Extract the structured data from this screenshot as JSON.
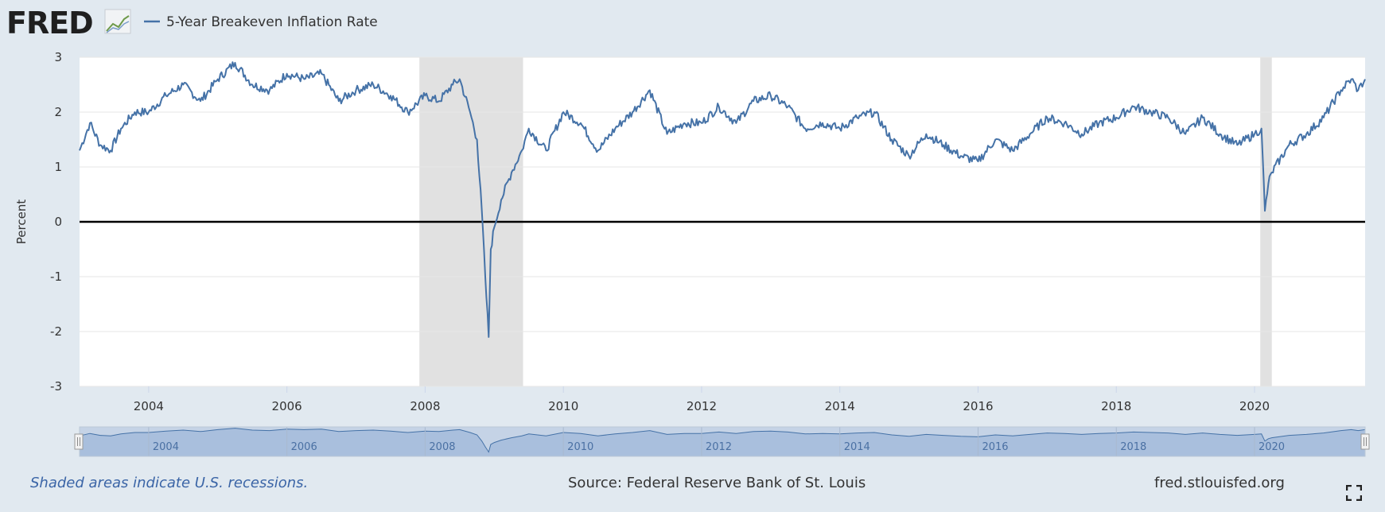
{
  "header": {
    "logo_text": "FRED",
    "series_title": "5-Year Breakeven Inflation Rate"
  },
  "colors": {
    "series": "#4572a7",
    "recession": "#e1e1e1",
    "background": "#e1e9f0",
    "zero_line": "#000000",
    "navigator_fill": "#a9bfdd"
  },
  "chart_data": {
    "type": "line",
    "title": "5-Year Breakeven Inflation Rate",
    "xlabel": "",
    "ylabel": "Percent",
    "xlim": [
      2003.0,
      2021.6
    ],
    "ylim": [
      -3,
      3
    ],
    "y_ticks": [
      "3",
      "2",
      "1",
      "0",
      "-1",
      "-2",
      "-3"
    ],
    "x_ticks": [
      "2004",
      "2006",
      "2008",
      "2010",
      "2012",
      "2014",
      "2016",
      "2018",
      "2020"
    ],
    "recessions": [
      [
        2007.917,
        2009.417
      ],
      [
        2020.083,
        2020.25
      ]
    ],
    "series": [
      {
        "name": "5-Year Breakeven Inflation Rate",
        "x": [
          2003.0,
          2003.15,
          2003.3,
          2003.45,
          2003.6,
          2003.8,
          2004.0,
          2004.25,
          2004.5,
          2004.75,
          2005.0,
          2005.25,
          2005.5,
          2005.75,
          2006.0,
          2006.25,
          2006.5,
          2006.75,
          2007.0,
          2007.25,
          2007.5,
          2007.75,
          2008.0,
          2008.2,
          2008.4,
          2008.5,
          2008.65,
          2008.75,
          2008.82,
          2008.87,
          2008.92,
          2008.95,
          2009.0,
          2009.1,
          2009.25,
          2009.4,
          2009.5,
          2009.75,
          2010.0,
          2010.25,
          2010.5,
          2010.75,
          2011.0,
          2011.25,
          2011.5,
          2011.75,
          2012.0,
          2012.25,
          2012.5,
          2012.75,
          2013.0,
          2013.25,
          2013.5,
          2013.75,
          2014.0,
          2014.25,
          2014.5,
          2014.75,
          2015.0,
          2015.25,
          2015.5,
          2015.75,
          2016.0,
          2016.25,
          2016.5,
          2016.75,
          2017.0,
          2017.25,
          2017.5,
          2017.75,
          2018.0,
          2018.25,
          2018.5,
          2018.75,
          2019.0,
          2019.25,
          2019.5,
          2019.75,
          2020.0,
          2020.1,
          2020.15,
          2020.2,
          2020.25,
          2020.5,
          2020.75,
          2021.0,
          2021.25,
          2021.4,
          2021.5,
          2021.6
        ],
        "values": [
          1.3,
          1.8,
          1.4,
          1.3,
          1.7,
          2.0,
          2.0,
          2.3,
          2.5,
          2.2,
          2.6,
          2.9,
          2.5,
          2.4,
          2.7,
          2.6,
          2.7,
          2.2,
          2.4,
          2.5,
          2.3,
          2.0,
          2.3,
          2.2,
          2.5,
          2.6,
          2.0,
          1.5,
          0.2,
          -1.0,
          -2.1,
          -0.5,
          -0.1,
          0.4,
          0.9,
          1.3,
          1.7,
          1.3,
          2.0,
          1.8,
          1.3,
          1.7,
          2.0,
          2.4,
          1.6,
          1.8,
          1.8,
          2.1,
          1.8,
          2.2,
          2.3,
          2.1,
          1.7,
          1.8,
          1.7,
          1.9,
          2.0,
          1.5,
          1.2,
          1.6,
          1.4,
          1.2,
          1.1,
          1.5,
          1.3,
          1.6,
          1.9,
          1.8,
          1.6,
          1.8,
          1.9,
          2.1,
          2.0,
          1.9,
          1.6,
          1.9,
          1.6,
          1.4,
          1.6,
          1.7,
          0.2,
          0.7,
          0.9,
          1.4,
          1.6,
          1.9,
          2.4,
          2.6,
          2.4,
          2.6
        ]
      }
    ]
  },
  "navigator": {
    "tick_labels": [
      "2004",
      "2006",
      "2008",
      "2010",
      "2012",
      "2014",
      "2016",
      "2018",
      "2020"
    ]
  },
  "footer": {
    "recession_note": "Shaded areas indicate U.S. recessions.",
    "source": "Source: Federal Reserve Bank of St. Louis",
    "site": "fred.stlouisfed.org"
  }
}
